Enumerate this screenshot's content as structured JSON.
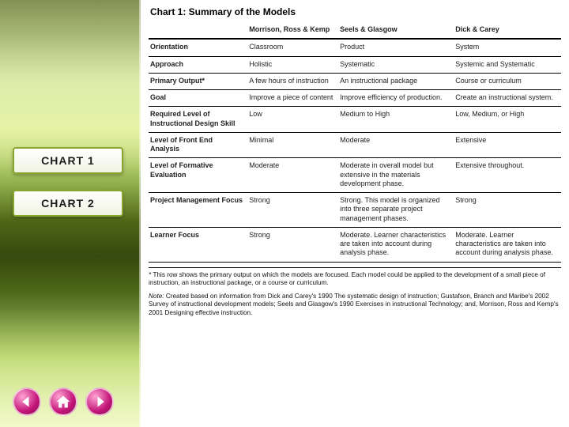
{
  "sidebar": {
    "buttons": [
      {
        "label": "CHART  1"
      },
      {
        "label": "CHART  2"
      }
    ],
    "nav_icons": [
      "back-icon",
      "home-icon",
      "forward-icon"
    ]
  },
  "chart": {
    "title": "Chart 1:  Summary of the Models",
    "columns": [
      "",
      "Morrison, Ross & Kemp",
      "Seels & Glasgow",
      "Dick & Carey"
    ],
    "rows": [
      {
        "head": "Orientation",
        "cells": [
          "Classroom",
          "Product",
          "System"
        ]
      },
      {
        "head": "Approach",
        "cells": [
          "Holistic",
          "Systematic",
          "Systemic and Systematic"
        ]
      },
      {
        "head": "Primary Output*",
        "cells": [
          "A few hours of instruction",
          "An instructional package",
          "Course or curriculum"
        ]
      },
      {
        "head": "Goal",
        "cells": [
          "Improve a piece of content",
          "Improve efficiency of production.",
          "Create an instructional system."
        ]
      },
      {
        "head": "Required Level of Instructional Design Skill",
        "cells": [
          "Low",
          "Medium to High",
          "Low, Medium, or High"
        ]
      },
      {
        "head": "Level of Front End Analysis",
        "cells": [
          "Minimal",
          "Moderate",
          "Extensive"
        ]
      },
      {
        "head": "Level of Formative Evaluation",
        "cells": [
          "Moderate",
          "Moderate in overall model but extensive in the materials development phase.",
          "Extensive throughout."
        ]
      },
      {
        "head": "Project Management Focus",
        "cells": [
          "Strong",
          "Strong. This model is organized into three separate project management phases.",
          "Strong"
        ]
      },
      {
        "head": "Learner Focus",
        "cells": [
          "Strong",
          "Moderate. Learner characteristics are taken into account during analysis phase.",
          "Moderate. Learner characteristics are taken into account during analysis phase."
        ]
      }
    ],
    "footnote_lead": "* ",
    "footnote": "This row shows the primary output on which the models are focused.  Each model could be applied to the development of a small piece of instruction, an instructional package, or a course or curriculum.",
    "note_lead": "Note: ",
    "note": "Created based on information from Dick and Carey's 1990 The systematic design of instruction; Gustafson, Branch and Maribe's 2002 Survey of instructional development models; Seels and Glasgow's 1990 Exercises in instructional Technology; and, Morrison, Ross and Kemp's 2001 Designing effective instruction.",
    "styling": {
      "background_color": "#ffffff",
      "text_color": "#222222",
      "border_color": "#000000",
      "title_fontsize_pt": 12,
      "body_fontsize_pt": 9,
      "font_family": "Verdana, Arial, sans-serif",
      "column_widths_pct": [
        24,
        22,
        28,
        26
      ]
    }
  },
  "theme": {
    "sidebar_gradient": [
      "#5a6b1c",
      "#6f8a1f",
      "#b8d84a",
      "#d7ea6b",
      "#8ab52a",
      "#5f7a1a",
      "#3e5311",
      "#5a7a1e",
      "#a8cf3f",
      "#dff07d"
    ],
    "button_border": "#88a62e",
    "button_text": "#1d1d1d",
    "nav_circle_gradient": [
      "#ffa4d4",
      "#c41679",
      "#7c0b4a"
    ]
  }
}
